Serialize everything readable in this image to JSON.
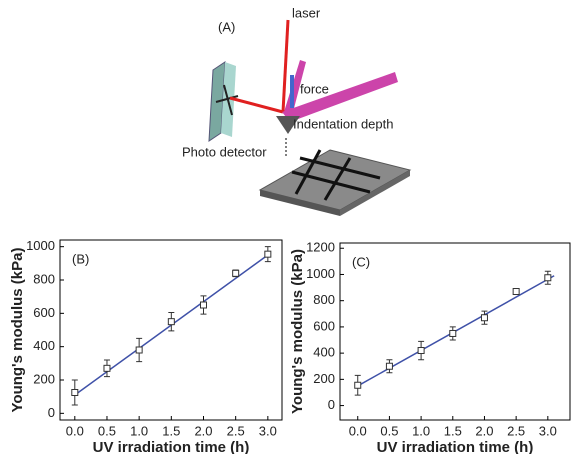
{
  "diagram": {
    "panel_label": "(A)",
    "laser": "laser",
    "force": "force",
    "indentation": "Indentation depth",
    "detector": "Photo detector"
  },
  "chart_data": [
    {
      "type": "scatter",
      "panel_label": "(B)",
      "xlabel": "UV irradiation time (h)",
      "ylabel": "Young's modulus (kPa)",
      "x": [
        0,
        0.5,
        1,
        1.5,
        2,
        2.5,
        3
      ],
      "values": [
        125,
        270,
        380,
        550,
        650,
        840,
        955
      ],
      "errors": [
        75,
        50,
        70,
        55,
        55,
        20,
        45
      ],
      "xlim": [
        -0.23,
        3.22
      ],
      "ylim": [
        -40,
        1040
      ],
      "xticks": [
        {
          "value": 0,
          "label": "0.0"
        },
        0.5,
        {
          "value": 1,
          "label": "1.0"
        },
        1.5,
        {
          "value": 2,
          "label": "2.0"
        },
        2.5,
        {
          "value": 3,
          "label": "3.0"
        }
      ],
      "yticks": [
        0,
        200,
        400,
        600,
        800,
        1000
      ],
      "color": "#333333",
      "fit": {
        "x": [
          0,
          3
        ],
        "values": [
          110,
          950
        ],
        "color": "#3f51a8"
      }
    },
    {
      "type": "scatter",
      "panel_label": "(C)",
      "xlabel": "UV irradiation time (h)",
      "ylabel": "Young's modulus (kPa)",
      "x": [
        0,
        0.5,
        1,
        1.5,
        2,
        2.5,
        3
      ],
      "values": [
        155,
        300,
        420,
        550,
        670,
        870,
        975
      ],
      "errors": [
        75,
        50,
        70,
        50,
        50,
        20,
        50
      ],
      "xlim": [
        -0.28,
        3.35
      ],
      "ylim": [
        -110,
        1240
      ],
      "xticks": [
        {
          "value": 0,
          "label": "0.0"
        },
        0.5,
        {
          "value": 1,
          "label": "1.0"
        },
        1.5,
        {
          "value": 2,
          "label": "2.0"
        },
        2.5,
        {
          "value": 3,
          "label": "3.0"
        }
      ],
      "yticks": [
        0,
        200,
        400,
        600,
        800,
        1000,
        1200
      ],
      "color": "#333333",
      "fit": {
        "x": [
          0,
          3.1
        ],
        "values": [
          150,
          990
        ],
        "color": "#3f51a8"
      }
    }
  ]
}
